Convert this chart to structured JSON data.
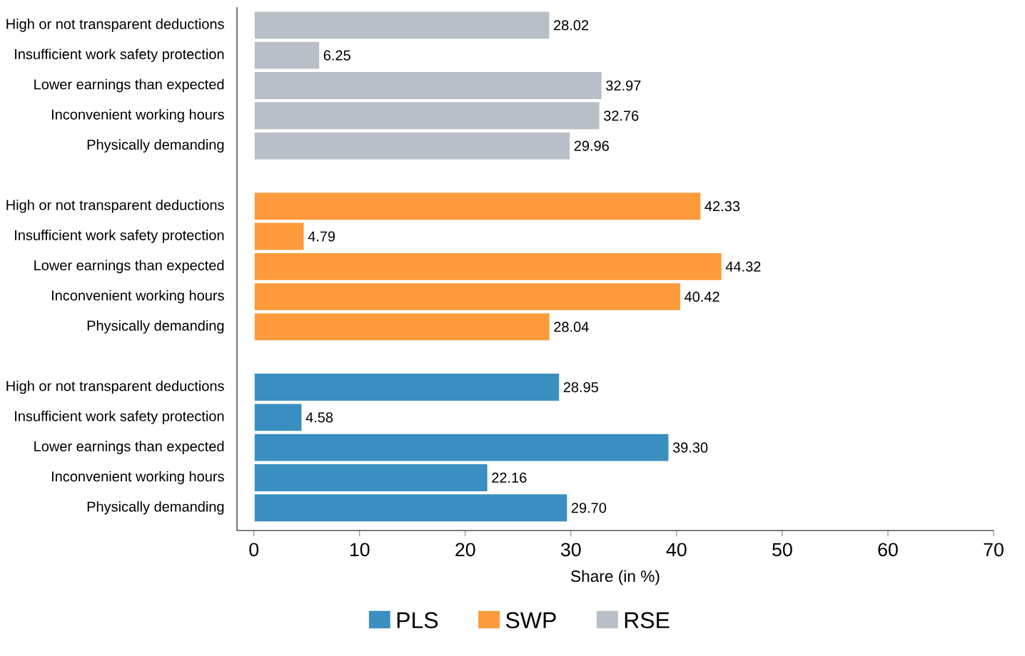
{
  "chart_data": {
    "type": "bar",
    "orientation": "horizontal",
    "xlabel": "Share (in %)",
    "categories": [
      "High or not transparent deductions",
      "Insufficient work safety protection",
      "Lower earnings than expected",
      "Inconvenient working hours",
      "Physically demanding",
      null,
      "High or not transparent deductions",
      "Insufficient work safety protection",
      "Lower earnings than expected",
      "Inconvenient working hours",
      "Physically demanding",
      null,
      "High or not transparent deductions",
      "Insufficient work safety protection",
      "Lower earnings than expected",
      "Inconvenient working hours",
      "Physically demanding"
    ],
    "series": [
      {
        "name": "PLS",
        "color": "#3a8fc0",
        "values": [
          null,
          null,
          null,
          null,
          null,
          null,
          null,
          null,
          null,
          null,
          null,
          null,
          28.95,
          4.58,
          39.3,
          22.16,
          29.7
        ],
        "value_labels": [
          null,
          null,
          null,
          null,
          null,
          null,
          null,
          null,
          null,
          null,
          null,
          null,
          "28.95",
          "4.58",
          "39.30",
          "22.16",
          "29.70"
        ]
      },
      {
        "name": "SWP",
        "color": "#fd9b3c",
        "values": [
          null,
          null,
          null,
          null,
          null,
          null,
          42.33,
          4.79,
          44.32,
          40.42,
          28.04,
          null,
          null,
          null,
          null,
          null,
          null
        ],
        "value_labels": [
          null,
          null,
          null,
          null,
          null,
          null,
          "42.33",
          "4.79",
          "44.32",
          "40.42",
          "28.04",
          null,
          null,
          null,
          null,
          null,
          null
        ]
      },
      {
        "name": "RSE",
        "color": "#b9bfc7",
        "values": [
          28.02,
          6.25,
          32.97,
          32.76,
          29.96,
          null,
          null,
          null,
          null,
          null,
          null,
          null,
          null,
          null,
          null,
          null,
          null
        ],
        "value_labels": [
          "28.02",
          "6.25",
          "32.97",
          "32.76",
          "29.96",
          null,
          null,
          null,
          null,
          null,
          null,
          null,
          null,
          null,
          null,
          null,
          null
        ]
      }
    ],
    "xlim": [
      -1.6,
      70
    ],
    "xticks": [
      0,
      10,
      20,
      30,
      40,
      50,
      60,
      70
    ],
    "legend": "bottom"
  }
}
